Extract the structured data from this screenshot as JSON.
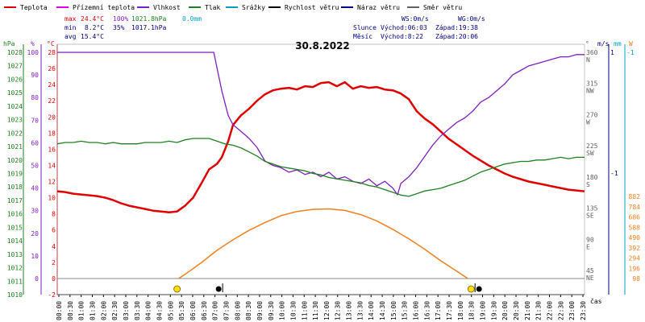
{
  "chart_data": {
    "type": "line",
    "title": "30.8.2022",
    "legend": [
      {
        "label": "Teplota",
        "color": "#e00000"
      },
      {
        "label": "Přízemní teplota",
        "color": "#e000e0"
      },
      {
        "label": "Vlhkost",
        "color": "#8020c0"
      },
      {
        "label": "Tlak",
        "color": "#208020"
      },
      {
        "label": "Srážky",
        "color": "#00a0c0"
      },
      {
        "label": "Rychlost větru",
        "color": "#000000"
      },
      {
        "label": "Náraz větru",
        "color": "#000080"
      },
      {
        "label": "Směr větru",
        "color": "#606060"
      }
    ],
    "stats": {
      "max": {
        "label": "max",
        "temp": "24.4°C",
        "hum": "100%",
        "press": "1021.8hPa",
        "rain": "0.0mm"
      },
      "min": {
        "label": "min",
        "temp": "8.2°C",
        "hum": "35%",
        "press": "1017.1hPa"
      },
      "avg": {
        "label": "avg",
        "temp": "15.4°C"
      }
    },
    "wind": {
      "ws": "WS:0m/s",
      "wg": "WG:0m/s"
    },
    "sun": {
      "label": "Slunce",
      "rise": "Východ:06:03",
      "set": "Západ:19:38"
    },
    "moon": {
      "label": "Měsíc",
      "rise": "Východ:8:22",
      "set": "Západ:20:06"
    },
    "axes": {
      "hpa": {
        "label": "hPa",
        "ticks": [
          "1028",
          "1027",
          "1026",
          "1025",
          "1024",
          "1023",
          "1022",
          "1021",
          "1020",
          "1019",
          "1018",
          "1017",
          "1016",
          "1015",
          "1014",
          "1013",
          "1012",
          "1011",
          "1010"
        ]
      },
      "pct": {
        "label": "%",
        "ticks": [
          "100",
          "90",
          "80",
          "70",
          "60",
          "50",
          "40",
          "30",
          "20",
          "10",
          "0"
        ]
      },
      "c": {
        "label": "°C",
        "ticks": [
          "28",
          "26",
          "24",
          "22",
          "20",
          "18",
          "16",
          "14",
          "12",
          "10",
          "8",
          "6",
          "4",
          "2",
          "0",
          "-2"
        ]
      },
      "deg": {
        "label": "°",
        "ticks": [
          {
            "v": "360",
            "l": "N"
          },
          {
            "v": "315",
            "l": "NW"
          },
          {
            "v": "270",
            "l": "W"
          },
          {
            "v": "225",
            "l": "SW"
          },
          {
            "v": "180",
            "l": "S"
          },
          {
            "v": "135",
            "l": "SE"
          },
          {
            "v": "90",
            "l": "E"
          },
          {
            "v": "45",
            "l": "NE"
          }
        ]
      },
      "ms": {
        "label": "m/s",
        "ticks": [
          "1",
          "-1"
        ]
      },
      "mm": {
        "label": "mm",
        "ticks": [
          "-1"
        ]
      },
      "wm2": {
        "label": "W",
        "ticks": [
          "882",
          "784",
          "686",
          "588",
          "490",
          "392",
          "294",
          "196",
          "98"
        ]
      },
      "xlabel": "čas",
      "xticks": [
        "00:00",
        "00:30",
        "01:00",
        "01:30",
        "02:00",
        "02:30",
        "03:00",
        "03:30",
        "04:00",
        "04:30",
        "05:00",
        "05:30",
        "06:00",
        "06:30",
        "07:00",
        "07:30",
        "08:00",
        "08:30",
        "09:00",
        "09:30",
        "10:00",
        "10:30",
        "11:00",
        "11:30",
        "12:00",
        "12:30",
        "13:00",
        "13:30",
        "14:00",
        "14:30",
        "15:00",
        "15:30",
        "16:00",
        "16:30",
        "17:00",
        "17:30",
        "18:00",
        "18:30",
        "19:00",
        "19:30",
        "20:00",
        "20:30",
        "21:00",
        "21:30",
        "22:00",
        "22:30",
        "23:00",
        "23:30"
      ]
    },
    "series": [
      {
        "name": "Teplota",
        "unit": "°C",
        "color": "#e00000",
        "points": [
          [
            0,
            10.8
          ],
          [
            0.5,
            10.7
          ],
          [
            1,
            10.5
          ],
          [
            1.5,
            10.4
          ],
          [
            2,
            10.3
          ],
          [
            2.5,
            10.2
          ],
          [
            3,
            10.0
          ],
          [
            3.5,
            9.7
          ],
          [
            4,
            9.3
          ],
          [
            4.5,
            9.0
          ],
          [
            5,
            8.8
          ],
          [
            5.5,
            8.6
          ],
          [
            6,
            8.4
          ],
          [
            6.5,
            8.3
          ],
          [
            7,
            8.2
          ],
          [
            7.5,
            8.3
          ],
          [
            8,
            9.0
          ],
          [
            8.5,
            10.0
          ],
          [
            9,
            11.7
          ],
          [
            9.5,
            13.5
          ],
          [
            10,
            14.2
          ],
          [
            10.3,
            15.0
          ],
          [
            10.7,
            17.0
          ],
          [
            11,
            19.0
          ],
          [
            11.5,
            20.2
          ],
          [
            12,
            21.0
          ],
          [
            12.5,
            22.0
          ],
          [
            13,
            22.8
          ],
          [
            13.5,
            23.3
          ],
          [
            14,
            23.5
          ],
          [
            14.5,
            23.6
          ],
          [
            15,
            23.4
          ],
          [
            15.5,
            23.8
          ],
          [
            16,
            23.7
          ],
          [
            16.5,
            24.2
          ],
          [
            17,
            24.3
          ],
          [
            17.5,
            23.8
          ],
          [
            18,
            24.3
          ],
          [
            18.5,
            23.5
          ],
          [
            19,
            23.8
          ],
          [
            19.5,
            23.6
          ],
          [
            20,
            23.7
          ],
          [
            20.5,
            23.4
          ],
          [
            21,
            23.3
          ],
          [
            21.5,
            22.9
          ],
          [
            22,
            22.2
          ],
          [
            22.5,
            20.7
          ],
          [
            23,
            19.8
          ],
          [
            23.5,
            19.1
          ],
          [
            24,
            18.2
          ],
          [
            24.5,
            17.3
          ],
          [
            25,
            16.6
          ],
          [
            25.5,
            15.9
          ],
          [
            26,
            15.2
          ],
          [
            26.5,
            14.6
          ],
          [
            27,
            14.0
          ],
          [
            27.5,
            13.5
          ],
          [
            28,
            13.0
          ],
          [
            28.5,
            12.6
          ],
          [
            29,
            12.3
          ],
          [
            29.5,
            12.0
          ],
          [
            30,
            11.8
          ],
          [
            30.5,
            11.6
          ],
          [
            31,
            11.4
          ],
          [
            31.5,
            11.2
          ],
          [
            32,
            11.0
          ],
          [
            32.5,
            10.9
          ],
          [
            33,
            10.8
          ]
        ]
      },
      {
        "name": "Vlhkost",
        "unit": "%",
        "color": "#8020c0",
        "points": [
          [
            0,
            100
          ],
          [
            2,
            100
          ],
          [
            4,
            100
          ],
          [
            6,
            100
          ],
          [
            8,
            100
          ],
          [
            9.8,
            100
          ],
          [
            10,
            93
          ],
          [
            10.3,
            83
          ],
          [
            10.7,
            72
          ],
          [
            11,
            68
          ],
          [
            11.5,
            65
          ],
          [
            12,
            62
          ],
          [
            12.5,
            58
          ],
          [
            13,
            52
          ],
          [
            13.5,
            50
          ],
          [
            14,
            49
          ],
          [
            14.5,
            47
          ],
          [
            15,
            48
          ],
          [
            15.5,
            46
          ],
          [
            16,
            47
          ],
          [
            16.5,
            45
          ],
          [
            17,
            47
          ],
          [
            17.5,
            44
          ],
          [
            18,
            45
          ],
          [
            18.5,
            43
          ],
          [
            19,
            42
          ],
          [
            19.5,
            44
          ],
          [
            20,
            41
          ],
          [
            20.5,
            43
          ],
          [
            21,
            40
          ],
          [
            21.3,
            37
          ],
          [
            21.5,
            42
          ],
          [
            22,
            45
          ],
          [
            22.5,
            49
          ],
          [
            23,
            54
          ],
          [
            23.5,
            59
          ],
          [
            24,
            63
          ],
          [
            24.5,
            66
          ],
          [
            25,
            69
          ],
          [
            25.5,
            71
          ],
          [
            26,
            74
          ],
          [
            26.5,
            78
          ],
          [
            27,
            80
          ],
          [
            27.5,
            83
          ],
          [
            28,
            86
          ],
          [
            28.5,
            90
          ],
          [
            29,
            92
          ],
          [
            29.5,
            94
          ],
          [
            30,
            95
          ],
          [
            30.5,
            96
          ],
          [
            31,
            97
          ],
          [
            31.5,
            98
          ],
          [
            32,
            98
          ],
          [
            32.5,
            99
          ],
          [
            33,
            99
          ]
        ]
      },
      {
        "name": "Tlak",
        "unit": "hPa",
        "color": "#208020",
        "points": [
          [
            0,
            1021.2
          ],
          [
            0.5,
            1021.3
          ],
          [
            1,
            1021.3
          ],
          [
            1.5,
            1021.4
          ],
          [
            2,
            1021.3
          ],
          [
            2.5,
            1021.3
          ],
          [
            3,
            1021.2
          ],
          [
            3.5,
            1021.3
          ],
          [
            4,
            1021.2
          ],
          [
            4.5,
            1021.2
          ],
          [
            5,
            1021.2
          ],
          [
            5.5,
            1021.3
          ],
          [
            6,
            1021.3
          ],
          [
            6.5,
            1021.3
          ],
          [
            7,
            1021.4
          ],
          [
            7.5,
            1021.3
          ],
          [
            8,
            1021.5
          ],
          [
            8.5,
            1021.6
          ],
          [
            9,
            1021.6
          ],
          [
            9.5,
            1021.6
          ],
          [
            10,
            1021.4
          ],
          [
            10.5,
            1021.2
          ],
          [
            11,
            1021.1
          ],
          [
            11.5,
            1020.9
          ],
          [
            12,
            1020.6
          ],
          [
            12.5,
            1020.3
          ],
          [
            13,
            1019.9
          ],
          [
            13.5,
            1019.7
          ],
          [
            14,
            1019.5
          ],
          [
            14.5,
            1019.4
          ],
          [
            15,
            1019.3
          ],
          [
            15.5,
            1019.2
          ],
          [
            16,
            1019.0
          ],
          [
            16.5,
            1018.9
          ],
          [
            17,
            1018.7
          ],
          [
            17.5,
            1018.6
          ],
          [
            18,
            1018.5
          ],
          [
            18.5,
            1018.4
          ],
          [
            19,
            1018.3
          ],
          [
            19.5,
            1018.1
          ],
          [
            20,
            1018.0
          ],
          [
            20.5,
            1017.8
          ],
          [
            21,
            1017.6
          ],
          [
            21.5,
            1017.4
          ],
          [
            22,
            1017.3
          ],
          [
            22.5,
            1017.5
          ],
          [
            23,
            1017.7
          ],
          [
            23.5,
            1017.8
          ],
          [
            24,
            1017.9
          ],
          [
            24.5,
            1018.1
          ],
          [
            25,
            1018.3
          ],
          [
            25.5,
            1018.5
          ],
          [
            26,
            1018.8
          ],
          [
            26.5,
            1019.1
          ],
          [
            27,
            1019.3
          ],
          [
            27.5,
            1019.5
          ],
          [
            28,
            1019.7
          ],
          [
            28.5,
            1019.8
          ],
          [
            29,
            1019.9
          ],
          [
            29.5,
            1019.9
          ],
          [
            30,
            1020.0
          ],
          [
            30.5,
            1020.0
          ],
          [
            31,
            1020.1
          ],
          [
            31.5,
            1020.2
          ],
          [
            32,
            1020.1
          ],
          [
            32.5,
            1020.2
          ],
          [
            33,
            1020.2
          ]
        ]
      },
      {
        "name": "Sluneční záření",
        "unit": "W",
        "color": "#f08020",
        "points": [
          [
            7.6,
            0
          ],
          [
            8,
            40
          ],
          [
            9,
            150
          ],
          [
            10,
            270
          ],
          [
            11,
            370
          ],
          [
            12,
            460
          ],
          [
            13,
            535
          ],
          [
            14,
            600
          ],
          [
            15,
            640
          ],
          [
            16,
            660
          ],
          [
            17,
            665
          ],
          [
            18,
            650
          ],
          [
            19,
            610
          ],
          [
            20,
            550
          ],
          [
            21,
            470
          ],
          [
            22,
            380
          ],
          [
            23,
            280
          ],
          [
            24,
            170
          ],
          [
            25,
            70
          ],
          [
            25.7,
            0
          ]
        ]
      }
    ],
    "x_domain": [
      0,
      33
    ],
    "events": [
      {
        "type": "sunrise",
        "x": 7.5
      },
      {
        "type": "moonrise",
        "x": 10.1
      },
      {
        "type": "sunset",
        "x": 25.9
      },
      {
        "type": "moonset",
        "x": 26.4
      }
    ]
  }
}
